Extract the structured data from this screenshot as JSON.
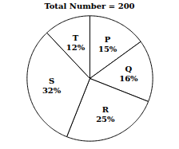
{
  "chart_data": {
    "type": "pie",
    "title": "Total Number = 200",
    "categories": [
      "P",
      "Q",
      "R",
      "S",
      "T"
    ],
    "values": [
      15,
      16,
      25,
      32,
      12
    ],
    "value_labels": [
      "15%",
      "16%",
      "25%",
      "32%",
      "12%"
    ],
    "colors": [
      "#ffffff",
      "#ffffff",
      "#ffffff",
      "#ffffff",
      "#ffffff"
    ],
    "data_labels": true
  }
}
